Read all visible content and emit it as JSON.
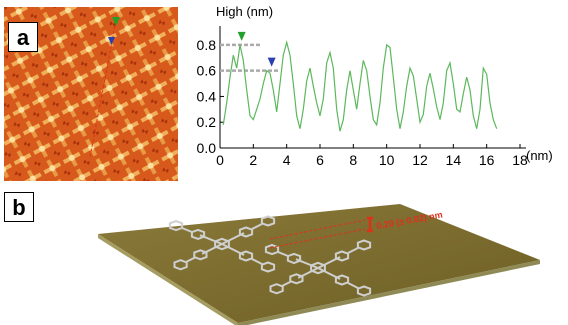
{
  "panels": {
    "a": "a",
    "b": "b"
  },
  "chart_data": {
    "type": "line",
    "title": "",
    "ylabel": "High (nm)",
    "xlabel": "(nm)",
    "xlim": [
      0,
      18
    ],
    "ylim": [
      0,
      0.9
    ],
    "xticks": [
      "0",
      "2",
      "4",
      "6",
      "8",
      "10",
      "12",
      "14",
      "16",
      "18"
    ],
    "yticks": [
      "0.0",
      "0.2",
      "0.4",
      "0.6",
      "0.8"
    ],
    "reference_lines": [
      0.8,
      0.6
    ],
    "markers": [
      {
        "color": "#22a02a",
        "x": 1.3,
        "y": 0.8
      },
      {
        "color": "#2a3fb0",
        "x": 3.1,
        "y": 0.6
      }
    ],
    "series": [
      {
        "color": "#5cb85c",
        "x": [
          0.2,
          0.4,
          0.6,
          0.8,
          1.0,
          1.2,
          1.4,
          1.6,
          1.8,
          2.0,
          2.2,
          2.4,
          2.6,
          2.8,
          3.0,
          3.2,
          3.4,
          3.6,
          3.8,
          4.0,
          4.2,
          4.4,
          4.6,
          4.8,
          5.0,
          5.2,
          5.4,
          5.6,
          5.8,
          6.0,
          6.2,
          6.4,
          6.6,
          6.8,
          7.0,
          7.2,
          7.4,
          7.6,
          7.8,
          8.0,
          8.2,
          8.4,
          8.6,
          8.8,
          9.0,
          9.2,
          9.4,
          9.6,
          9.8,
          10.0,
          10.2,
          10.4,
          10.6,
          10.8,
          11.0,
          11.2,
          11.4,
          11.6,
          11.8,
          12.0,
          12.2,
          12.4,
          12.6,
          12.8,
          13.0,
          13.2,
          13.4,
          13.6,
          13.8,
          14.0,
          14.2,
          14.4,
          14.6,
          14.8,
          15.0,
          15.2,
          15.4,
          15.6,
          15.8,
          16.0,
          16.2,
          16.4,
          16.6
        ],
        "y": [
          0.18,
          0.35,
          0.55,
          0.72,
          0.62,
          0.8,
          0.68,
          0.45,
          0.25,
          0.22,
          0.3,
          0.38,
          0.5,
          0.6,
          0.58,
          0.45,
          0.28,
          0.5,
          0.72,
          0.82,
          0.72,
          0.5,
          0.25,
          0.15,
          0.3,
          0.52,
          0.62,
          0.48,
          0.35,
          0.25,
          0.38,
          0.66,
          0.74,
          0.62,
          0.3,
          0.13,
          0.22,
          0.45,
          0.6,
          0.45,
          0.3,
          0.5,
          0.68,
          0.6,
          0.4,
          0.22,
          0.18,
          0.35,
          0.62,
          0.8,
          0.78,
          0.55,
          0.3,
          0.15,
          0.28,
          0.48,
          0.62,
          0.56,
          0.38,
          0.2,
          0.26,
          0.48,
          0.58,
          0.46,
          0.32,
          0.22,
          0.35,
          0.6,
          0.66,
          0.5,
          0.3,
          0.28,
          0.42,
          0.55,
          0.45,
          0.25,
          0.15,
          0.3,
          0.62,
          0.57,
          0.35,
          0.22,
          0.15
        ]
      }
    ]
  },
  "annotation": {
    "gap": "0.20 (± 0.02) nm"
  }
}
